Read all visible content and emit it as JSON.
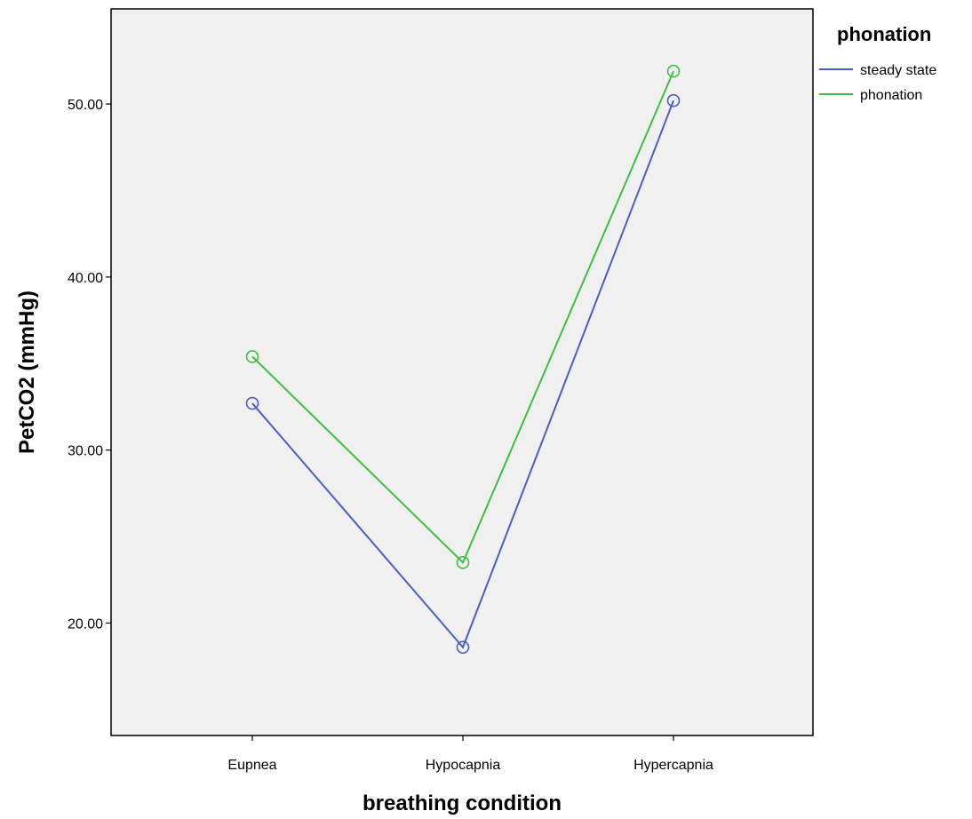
{
  "chart_data": {
    "type": "line",
    "xlabel": "breathing condition",
    "ylabel": "PetCO2 (mmHg)",
    "categories": [
      "Eupnea",
      "Hypocapnia",
      "Hypercapnia"
    ],
    "ylim": [
      13.5,
      55.5
    ],
    "yticks": [
      20,
      30,
      40,
      50
    ],
    "ytick_labels": [
      "20.00",
      "30.00",
      "40.00",
      "50.00"
    ],
    "grid": false,
    "markers": "open-circle",
    "series": [
      {
        "name": "steady state",
        "color": "#4a5fc1",
        "values": [
          32.7,
          18.6,
          50.2
        ]
      },
      {
        "name": "phonation",
        "color": "#3fbf3f",
        "values": [
          35.4,
          23.5,
          51.9
        ]
      }
    ],
    "legend": {
      "title": "phonation",
      "position": "top-right-outside"
    }
  }
}
